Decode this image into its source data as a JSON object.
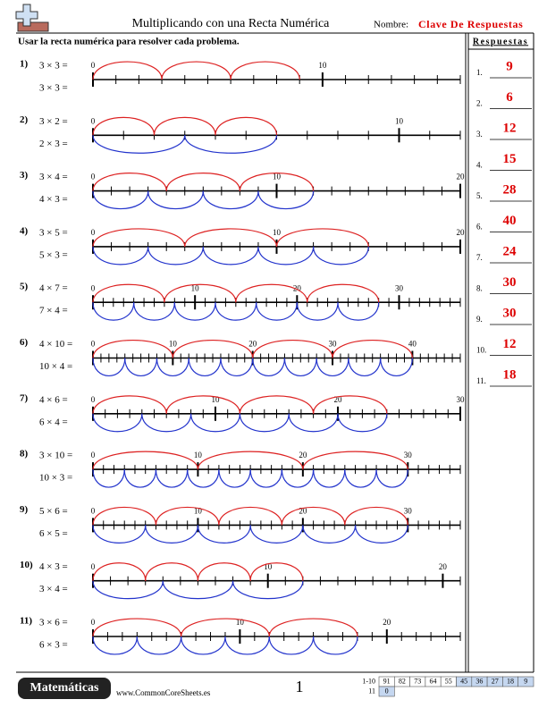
{
  "header": {
    "title": "Multiplicando con una Recta Numérica",
    "name_label": "Nombre:",
    "name_value": "Clave De Respuestas"
  },
  "instructions": "Usar la recta numérica para resolver cada problema.",
  "answers_title": "Respuestas",
  "problems": [
    {
      "number": "1)",
      "top": "3 × 3 =",
      "bottom": "3 × 3 =",
      "xlim": [
        0,
        16
      ],
      "xticks": [
        0,
        10
      ]
    },
    {
      "number": "2)",
      "top": "3 × 2 =",
      "bottom": "2 × 3 =",
      "xlim": [
        0,
        12
      ],
      "xticks": [
        0,
        10
      ]
    },
    {
      "number": "3)",
      "top": "3 × 4 =",
      "bottom": "4 × 3 =",
      "xlim": [
        0,
        20
      ],
      "xticks": [
        0,
        10,
        20
      ]
    },
    {
      "number": "4)",
      "top": "3 × 5 =",
      "bottom": "5 × 3 =",
      "xlim": [
        0,
        20
      ],
      "xticks": [
        0,
        10,
        20
      ]
    },
    {
      "number": "5)",
      "top": "4 × 7 =",
      "bottom": "7 × 4 =",
      "xlim": [
        0,
        36
      ],
      "xticks": [
        0,
        10,
        20,
        30
      ]
    },
    {
      "number": "6)",
      "top": "4 × 10 =",
      "bottom": "10 × 4 =",
      "xlim": [
        0,
        46
      ],
      "xticks": [
        0,
        10,
        20,
        30,
        40
      ]
    },
    {
      "number": "7)",
      "top": "4 × 6 =",
      "bottom": "6 × 4 =",
      "xlim": [
        0,
        30
      ],
      "xticks": [
        0,
        10,
        20,
        30
      ]
    },
    {
      "number": "8)",
      "top": "3 × 10 =",
      "bottom": "10 × 3 =",
      "xlim": [
        0,
        35
      ],
      "xticks": [
        0,
        10,
        20,
        30
      ]
    },
    {
      "number": "9)",
      "top": "5 × 6 =",
      "bottom": "6 × 5 =",
      "xlim": [
        0,
        35
      ],
      "xticks": [
        0,
        10,
        20,
        30
      ]
    },
    {
      "number": "10)",
      "top": "4 × 3 =",
      "bottom": "3 × 4 =",
      "xlim": [
        0,
        21
      ],
      "xticks": [
        0,
        10,
        20
      ]
    },
    {
      "number": "11)",
      "top": "3 × 6 =",
      "bottom": "6 × 3 =",
      "xlim": [
        0,
        25
      ],
      "xticks": [
        0,
        10,
        20
      ]
    }
  ],
  "answers": [
    {
      "label": "1.",
      "value": "9"
    },
    {
      "label": "2.",
      "value": "6"
    },
    {
      "label": "3.",
      "value": "12"
    },
    {
      "label": "4.",
      "value": "15"
    },
    {
      "label": "5.",
      "value": "28"
    },
    {
      "label": "6.",
      "value": "40"
    },
    {
      "label": "7.",
      "value": "24"
    },
    {
      "label": "8.",
      "value": "30"
    },
    {
      "label": "9.",
      "value": "30"
    },
    {
      "label": "10.",
      "value": "12"
    },
    {
      "label": "11.",
      "value": "18"
    }
  ],
  "footer": {
    "brand": "Matemáticas",
    "site": "www.CommonCoreSheets.es",
    "page": "1",
    "score_rows": [
      {
        "label": "1-10",
        "cells": [
          "91",
          "82",
          "73",
          "64",
          "55",
          "45",
          "36",
          "27",
          "18",
          "9"
        ]
      },
      {
        "label": "11",
        "cells": [
          "0"
        ]
      }
    ]
  }
}
